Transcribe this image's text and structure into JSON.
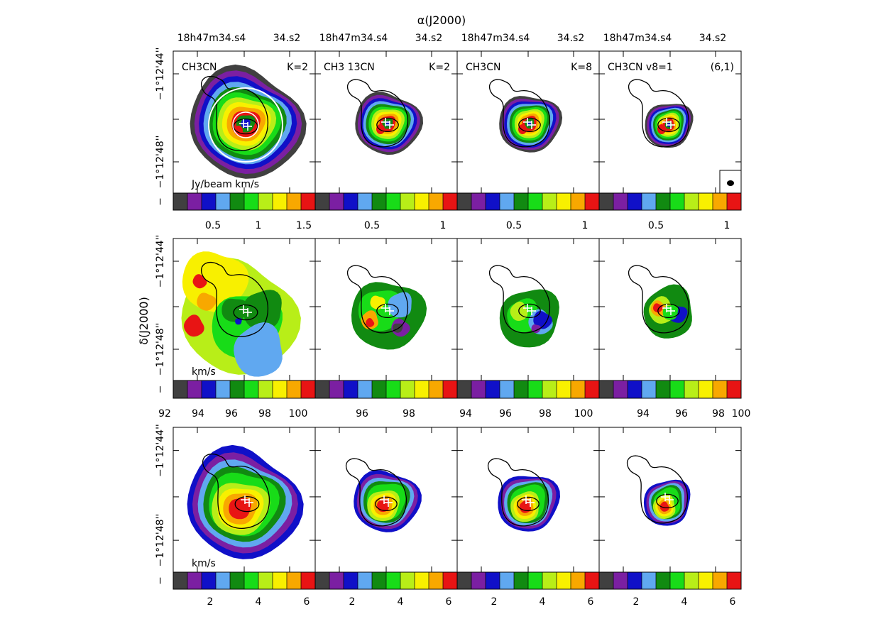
{
  "figure": {
    "top_axis_title": "α(J2000)",
    "left_axis_title": "δ(J2000)",
    "ra_tick_left": "18h47m34.s4",
    "ra_tick_right": "34.s2",
    "dec_tick_top": "−1°12'44''",
    "dec_tick_bottom": "−1°12'48''"
  },
  "panel_titles": [
    {
      "species": "CH3CN",
      "transition": "K=2"
    },
    {
      "species": "CH3 13CN",
      "transition": "K=2"
    },
    {
      "species": "CH3CN",
      "transition": "K=8"
    },
    {
      "species": "CH3CN v8=1",
      "transition": "(6,1)"
    }
  ],
  "rows": [
    {
      "unit_label": "Jy/beam km/s",
      "colorbar_ticks": [
        [
          "0.5",
          "1",
          "1.5"
        ],
        [
          "0.5",
          "1"
        ],
        [
          "0.5",
          "1"
        ],
        [
          "0.5",
          "1"
        ]
      ]
    },
    {
      "unit_label": "km/s",
      "colorbar_ticks": [
        [
          "92",
          "94",
          "96",
          "98",
          "100"
        ],
        [
          "96",
          "98"
        ],
        [
          "94",
          "96",
          "98",
          "100"
        ],
        [
          "94",
          "96",
          "98",
          "100"
        ]
      ]
    },
    {
      "unit_label": "km/s",
      "colorbar_ticks": [
        [
          "2",
          "4",
          "6"
        ],
        [
          "2",
          "4",
          "6"
        ],
        [
          "2",
          "4",
          "6"
        ],
        [
          "2",
          "4",
          "6"
        ]
      ]
    }
  ],
  "palette": [
    "#404040",
    "#7b1fa2",
    "#1010c8",
    "#60a8f0",
    "#118a11",
    "#18dc18",
    "#b8ee18",
    "#f8f000",
    "#f8a800",
    "#e81414"
  ]
}
